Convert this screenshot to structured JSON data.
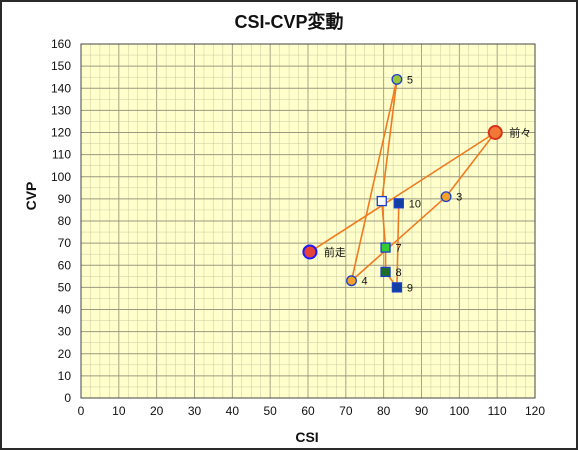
{
  "chart_data": {
    "type": "scatter",
    "title": "CSI-CVP変動",
    "xlabel": "CSI",
    "ylabel": "CVP",
    "xlim": [
      0,
      120
    ],
    "ylim": [
      0,
      160
    ],
    "xticks": [
      0,
      10,
      20,
      30,
      40,
      50,
      60,
      70,
      80,
      90,
      100,
      110,
      120
    ],
    "yticks": [
      0,
      10,
      20,
      30,
      40,
      50,
      60,
      70,
      80,
      90,
      100,
      110,
      120,
      130,
      140,
      150,
      160
    ],
    "grid": true,
    "connect_order": [
      "前走",
      "前々",
      "3",
      "4",
      "5",
      "6",
      "7",
      "8",
      "9",
      "10"
    ],
    "points": [
      {
        "label": "前走",
        "x": 60.5,
        "y": 66,
        "marker": "circle",
        "fill": "#e8433a",
        "stroke": "#1a1aff",
        "size": "large"
      },
      {
        "label": "前々",
        "x": 109.5,
        "y": 120,
        "marker": "circle",
        "fill": "#f07a35",
        "stroke": "#d6331e",
        "size": "large"
      },
      {
        "label": "3",
        "x": 96.5,
        "y": 91,
        "marker": "circle",
        "fill": "#f4a227",
        "stroke": "#1a3fcc",
        "size": "medium"
      },
      {
        "label": "4",
        "x": 71.5,
        "y": 53,
        "marker": "circle",
        "fill": "#f4a227",
        "stroke": "#1a3fcc",
        "size": "medium"
      },
      {
        "label": "5",
        "x": 83.5,
        "y": 144,
        "marker": "circle",
        "fill": "#9bc43a",
        "stroke": "#1a3fcc",
        "size": "medium"
      },
      {
        "label": "",
        "x": 79.5,
        "y": 89,
        "marker": "square",
        "fill": "#ffffff",
        "stroke": "#1a3fcc",
        "size": "medium"
      },
      {
        "label": "7",
        "x": 80.5,
        "y": 68,
        "marker": "square",
        "fill": "#33cc33",
        "stroke": "#1a3fcc",
        "size": "medium"
      },
      {
        "label": "8",
        "x": 80.5,
        "y": 57,
        "marker": "square",
        "fill": "#1e6e2a",
        "stroke": "#1a3fcc",
        "size": "medium"
      },
      {
        "label": "9",
        "x": 83.5,
        "y": 50,
        "marker": "square",
        "fill": "#123fa0",
        "stroke": "#1a3fcc",
        "size": "medium"
      },
      {
        "label": "10",
        "x": 84,
        "y": 88,
        "marker": "square",
        "fill": "#123fa0",
        "stroke": "#1a3fcc",
        "size": "medium"
      }
    ],
    "colors": {
      "line": "#f07a20",
      "plot_background": "#ffffcc",
      "minor_grid": "#c9c9a2",
      "major_grid": "#9a9a80"
    }
  }
}
